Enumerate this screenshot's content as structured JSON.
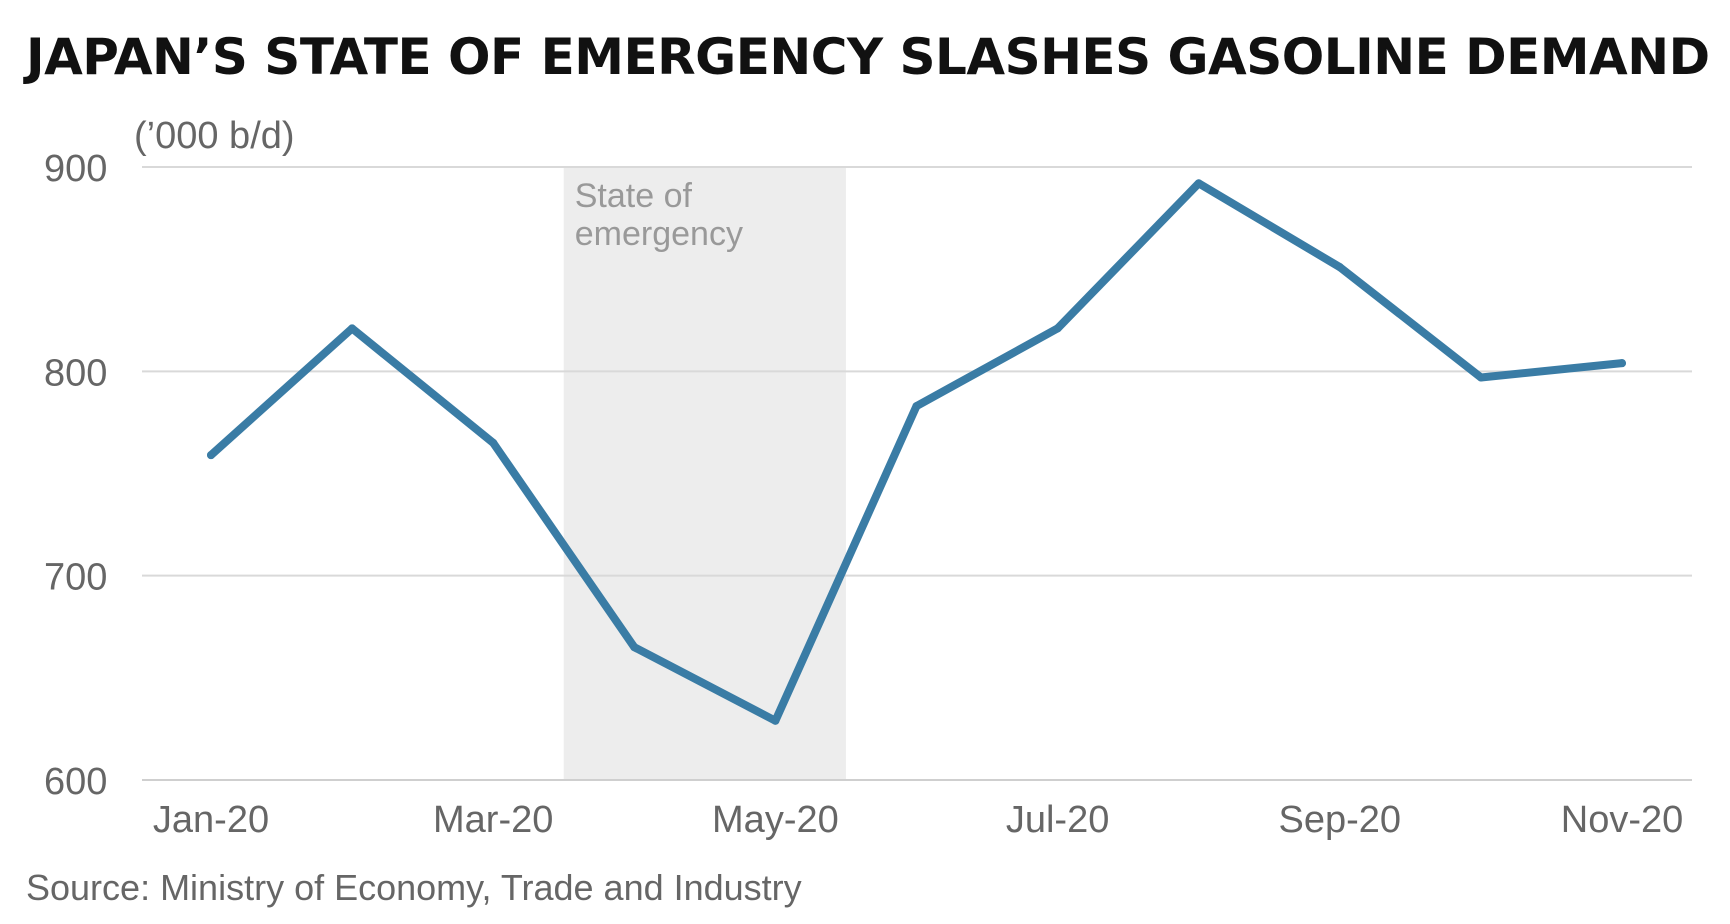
{
  "chart_data": {
    "type": "line",
    "title": "JAPAN’S STATE OF EMERGENCY SLASHES GASOLINE DEMAND",
    "ylabel": "(’000 b/d)",
    "xlabel": "",
    "categories": [
      "Jan-20",
      "Feb-20",
      "Mar-20",
      "Apr-20",
      "May-20",
      "Jun-20",
      "Jul-20",
      "Aug-20",
      "Sep-20",
      "Oct-20",
      "Nov-20"
    ],
    "x_tick_labels": [
      "Jan-20",
      "Mar-20",
      "May-20",
      "Jul-20",
      "Sep-20",
      "Nov-20"
    ],
    "series": [
      {
        "name": "Gasoline demand",
        "values": [
          759,
          821,
          765,
          665,
          629,
          783,
          821,
          892,
          851,
          797,
          804
        ]
      }
    ],
    "ylim": [
      600,
      900
    ],
    "y_ticks": [
      900,
      800,
      700,
      600
    ],
    "grid": true,
    "shaded_region": {
      "label_line1": "State of",
      "label_line2": "emergency",
      "from_index": 3,
      "to_index": 5
    },
    "source": "Source: Ministry of Economy, Trade and Industry"
  },
  "colors": {
    "line": "#3a7ca5",
    "shade": "#ededed",
    "grid": "#d9d9d9"
  }
}
